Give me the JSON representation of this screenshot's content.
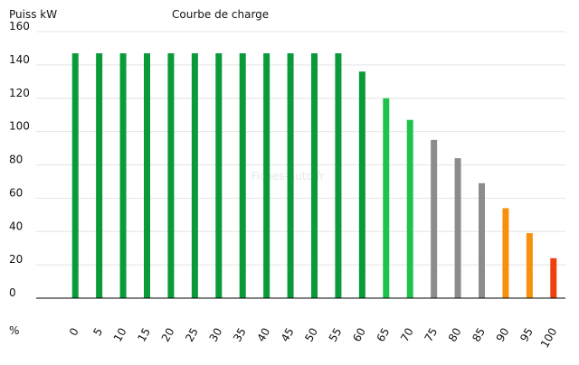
{
  "chart_data": {
    "type": "bar",
    "title": "Courbe de charge",
    "y_label": "Puiss kW",
    "x_label": "%",
    "watermark": "Fiches-auto.fr",
    "categories": [
      "0",
      "5",
      "10",
      "15",
      "20",
      "25",
      "30",
      "35",
      "40",
      "45",
      "50",
      "55",
      "60",
      "65",
      "70",
      "75",
      "80",
      "85",
      "90",
      "95",
      "100"
    ],
    "values": [
      147,
      147,
      147,
      147,
      147,
      147,
      147,
      147,
      147,
      147,
      147,
      147,
      136,
      120,
      107,
      95,
      84,
      69,
      54,
      39,
      24
    ],
    "colors": [
      "#0a9a3a",
      "#0a9a3a",
      "#0a9a3a",
      "#0a9a3a",
      "#0a9a3a",
      "#0a9a3a",
      "#0a9a3a",
      "#0a9a3a",
      "#0a9a3a",
      "#0a9a3a",
      "#0a9a3a",
      "#0a9a3a",
      "#0a9a3a",
      "#1ec34a",
      "#1ec34a",
      "#8c8c8c",
      "#8c8c8c",
      "#8c8c8c",
      "#f7900a",
      "#f7900a",
      "#f04010"
    ],
    "ylim": [
      0,
      160
    ],
    "yticks": [
      0,
      20,
      40,
      60,
      80,
      100,
      120,
      140,
      160
    ],
    "grid": true
  }
}
